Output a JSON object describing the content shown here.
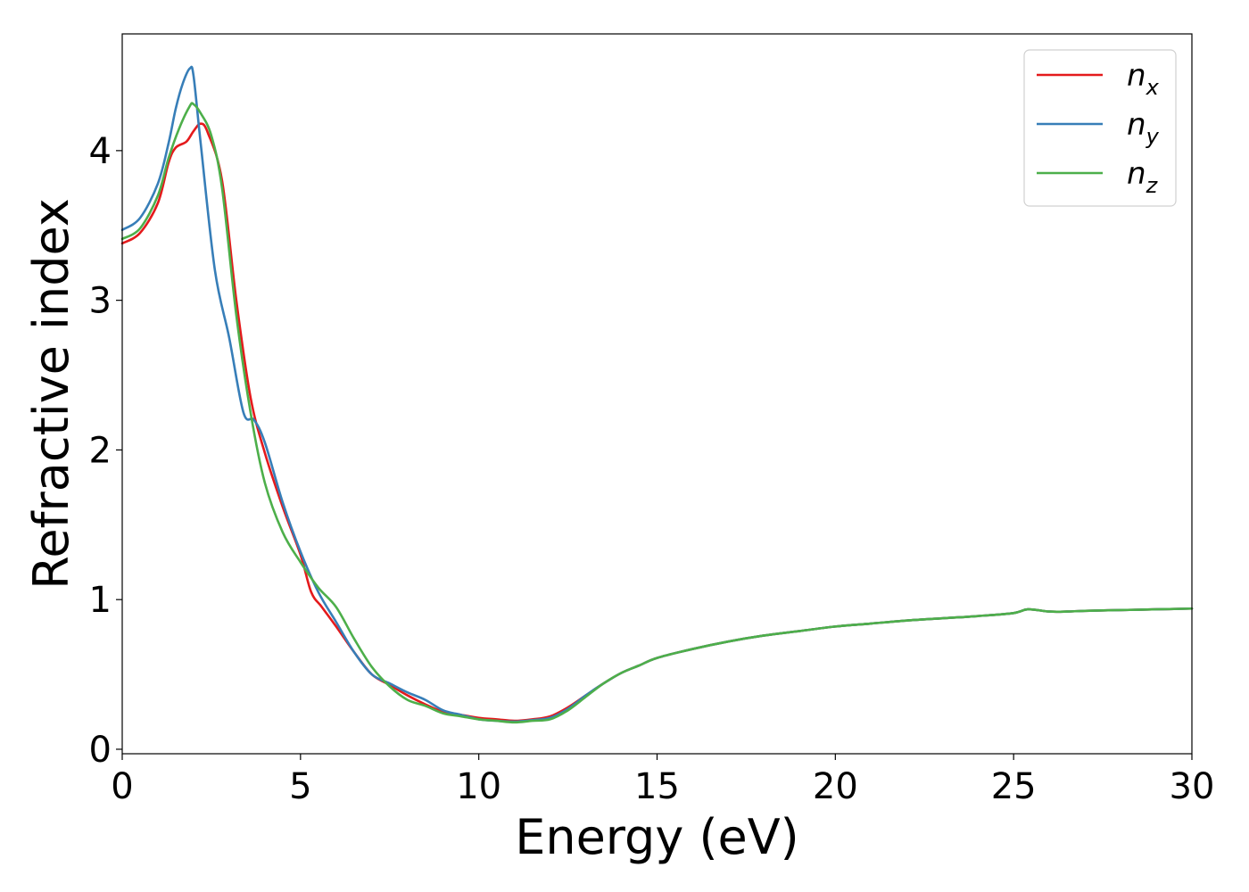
{
  "chart_data": {
    "type": "line",
    "title": "",
    "xlabel": "Energy (eV)",
    "ylabel": "Refractive index",
    "xlim": [
      0,
      30
    ],
    "ylim": [
      -0.03,
      4.78
    ],
    "xticks": [
      0,
      5,
      10,
      15,
      20,
      25,
      30
    ],
    "yticks": [
      0,
      1,
      2,
      3,
      4
    ],
    "grid": false,
    "legend_position": "top-right",
    "series": [
      {
        "name": "n",
        "subscript": "x",
        "color": "#e41a1c",
        "x": [
          0,
          0.5,
          1.0,
          1.3,
          1.5,
          1.8,
          2.0,
          2.2,
          2.4,
          2.8,
          3.2,
          3.6,
          4.0,
          4.5,
          5.0,
          5.3,
          5.6,
          6.0,
          6.5,
          7.0,
          7.5,
          8.0,
          8.5,
          9.0,
          9.5,
          10.0,
          10.5,
          11.0,
          11.5,
          12.0,
          12.5,
          13.0,
          13.5,
          14.0,
          14.5,
          15,
          16,
          17,
          18,
          19,
          20,
          21,
          22,
          23,
          24,
          25,
          25.4,
          26,
          26.5,
          27,
          28,
          29,
          30
        ],
        "y": [
          3.38,
          3.45,
          3.65,
          3.92,
          4.02,
          4.06,
          4.13,
          4.18,
          4.12,
          3.8,
          3.0,
          2.35,
          1.98,
          1.62,
          1.3,
          1.05,
          0.95,
          0.82,
          0.65,
          0.5,
          0.43,
          0.36,
          0.3,
          0.25,
          0.23,
          0.21,
          0.2,
          0.19,
          0.2,
          0.22,
          0.28,
          0.36,
          0.44,
          0.51,
          0.56,
          0.61,
          0.67,
          0.72,
          0.76,
          0.79,
          0.82,
          0.84,
          0.86,
          0.875,
          0.89,
          0.91,
          0.935,
          0.92,
          0.92,
          0.925,
          0.93,
          0.935,
          0.94
        ]
      },
      {
        "name": "n",
        "subscript": "y",
        "color": "#377eb8",
        "x": [
          0,
          0.5,
          1.0,
          1.3,
          1.5,
          1.7,
          1.9,
          2.0,
          2.2,
          2.6,
          3.0,
          3.4,
          3.7,
          4.0,
          4.5,
          5.0,
          5.5,
          6.0,
          6.5,
          7.0,
          7.5,
          8.0,
          8.5,
          9.0,
          9.5,
          10.0,
          10.5,
          11.0,
          11.5,
          12.0,
          12.5,
          13.0,
          13.5,
          14.0,
          14.5,
          15,
          16,
          17,
          18,
          19,
          20,
          21,
          22,
          23,
          24,
          25,
          25.4,
          26,
          26.5,
          27,
          28,
          29,
          30
        ],
        "y": [
          3.47,
          3.55,
          3.78,
          4.05,
          4.28,
          4.45,
          4.55,
          4.5,
          4.05,
          3.2,
          2.75,
          2.25,
          2.2,
          2.05,
          1.65,
          1.32,
          1.05,
          0.85,
          0.65,
          0.5,
          0.44,
          0.38,
          0.33,
          0.26,
          0.23,
          0.2,
          0.19,
          0.185,
          0.195,
          0.21,
          0.27,
          0.36,
          0.44,
          0.51,
          0.56,
          0.61,
          0.67,
          0.72,
          0.76,
          0.79,
          0.82,
          0.84,
          0.86,
          0.875,
          0.89,
          0.91,
          0.935,
          0.92,
          0.92,
          0.925,
          0.93,
          0.935,
          0.94
        ]
      },
      {
        "name": "n",
        "subscript": "z",
        "color": "#4daf4a",
        "x": [
          0,
          0.5,
          1.0,
          1.3,
          1.6,
          1.9,
          2.0,
          2.2,
          2.5,
          2.8,
          3.2,
          3.6,
          4.0,
          4.5,
          5.0,
          5.5,
          6.0,
          6.5,
          7.0,
          7.5,
          8.0,
          8.5,
          9.0,
          9.5,
          10.0,
          10.5,
          11.0,
          11.5,
          12.0,
          12.5,
          13.0,
          13.5,
          14.0,
          14.5,
          15,
          16,
          17,
          18,
          19,
          20,
          21,
          22,
          23,
          24,
          25,
          25.4,
          26,
          26.5,
          27,
          28,
          29,
          30
        ],
        "y": [
          3.41,
          3.48,
          3.7,
          3.95,
          4.15,
          4.3,
          4.31,
          4.25,
          4.1,
          3.75,
          2.9,
          2.25,
          1.78,
          1.45,
          1.25,
          1.08,
          0.95,
          0.74,
          0.55,
          0.42,
          0.33,
          0.29,
          0.24,
          0.22,
          0.2,
          0.19,
          0.18,
          0.19,
          0.2,
          0.26,
          0.35,
          0.44,
          0.51,
          0.56,
          0.61,
          0.67,
          0.72,
          0.76,
          0.79,
          0.82,
          0.84,
          0.86,
          0.875,
          0.89,
          0.91,
          0.935,
          0.92,
          0.92,
          0.925,
          0.93,
          0.935,
          0.94
        ]
      }
    ]
  }
}
